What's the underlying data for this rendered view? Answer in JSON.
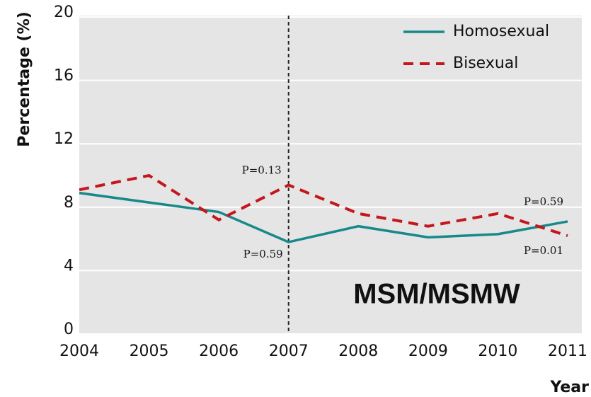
{
  "chart_data": {
    "type": "line",
    "x": [
      2004,
      2005,
      2006,
      2007,
      2008,
      2009,
      2010,
      2011
    ],
    "series": [
      {
        "name": "Homosexual",
        "color": "#17898a",
        "values": [
          8.9,
          8.3,
          7.7,
          5.8,
          6.8,
          6.1,
          6.3,
          7.1
        ]
      },
      {
        "name": "Bisexual",
        "color": "#c4161c",
        "dashed": true,
        "values": [
          9.1,
          10.0,
          7.2,
          9.4,
          7.6,
          6.8,
          7.6,
          6.2
        ]
      }
    ],
    "xlim": [
      2004,
      2011
    ],
    "xticks": [
      2004,
      2005,
      2006,
      2007,
      2008,
      2009,
      2010,
      2011
    ],
    "ylim": [
      0,
      20
    ],
    "yticks": [
      0,
      4,
      8,
      12,
      16,
      20
    ],
    "ylabel": "Percentage (%)",
    "xlabel": "Year",
    "grid": true,
    "legend": "upper right",
    "vline": 2007,
    "annotations": [
      "P=0.13",
      "P=0.59",
      "P=0.59",
      "P=0.01",
      "MSM/MSMW"
    ]
  }
}
